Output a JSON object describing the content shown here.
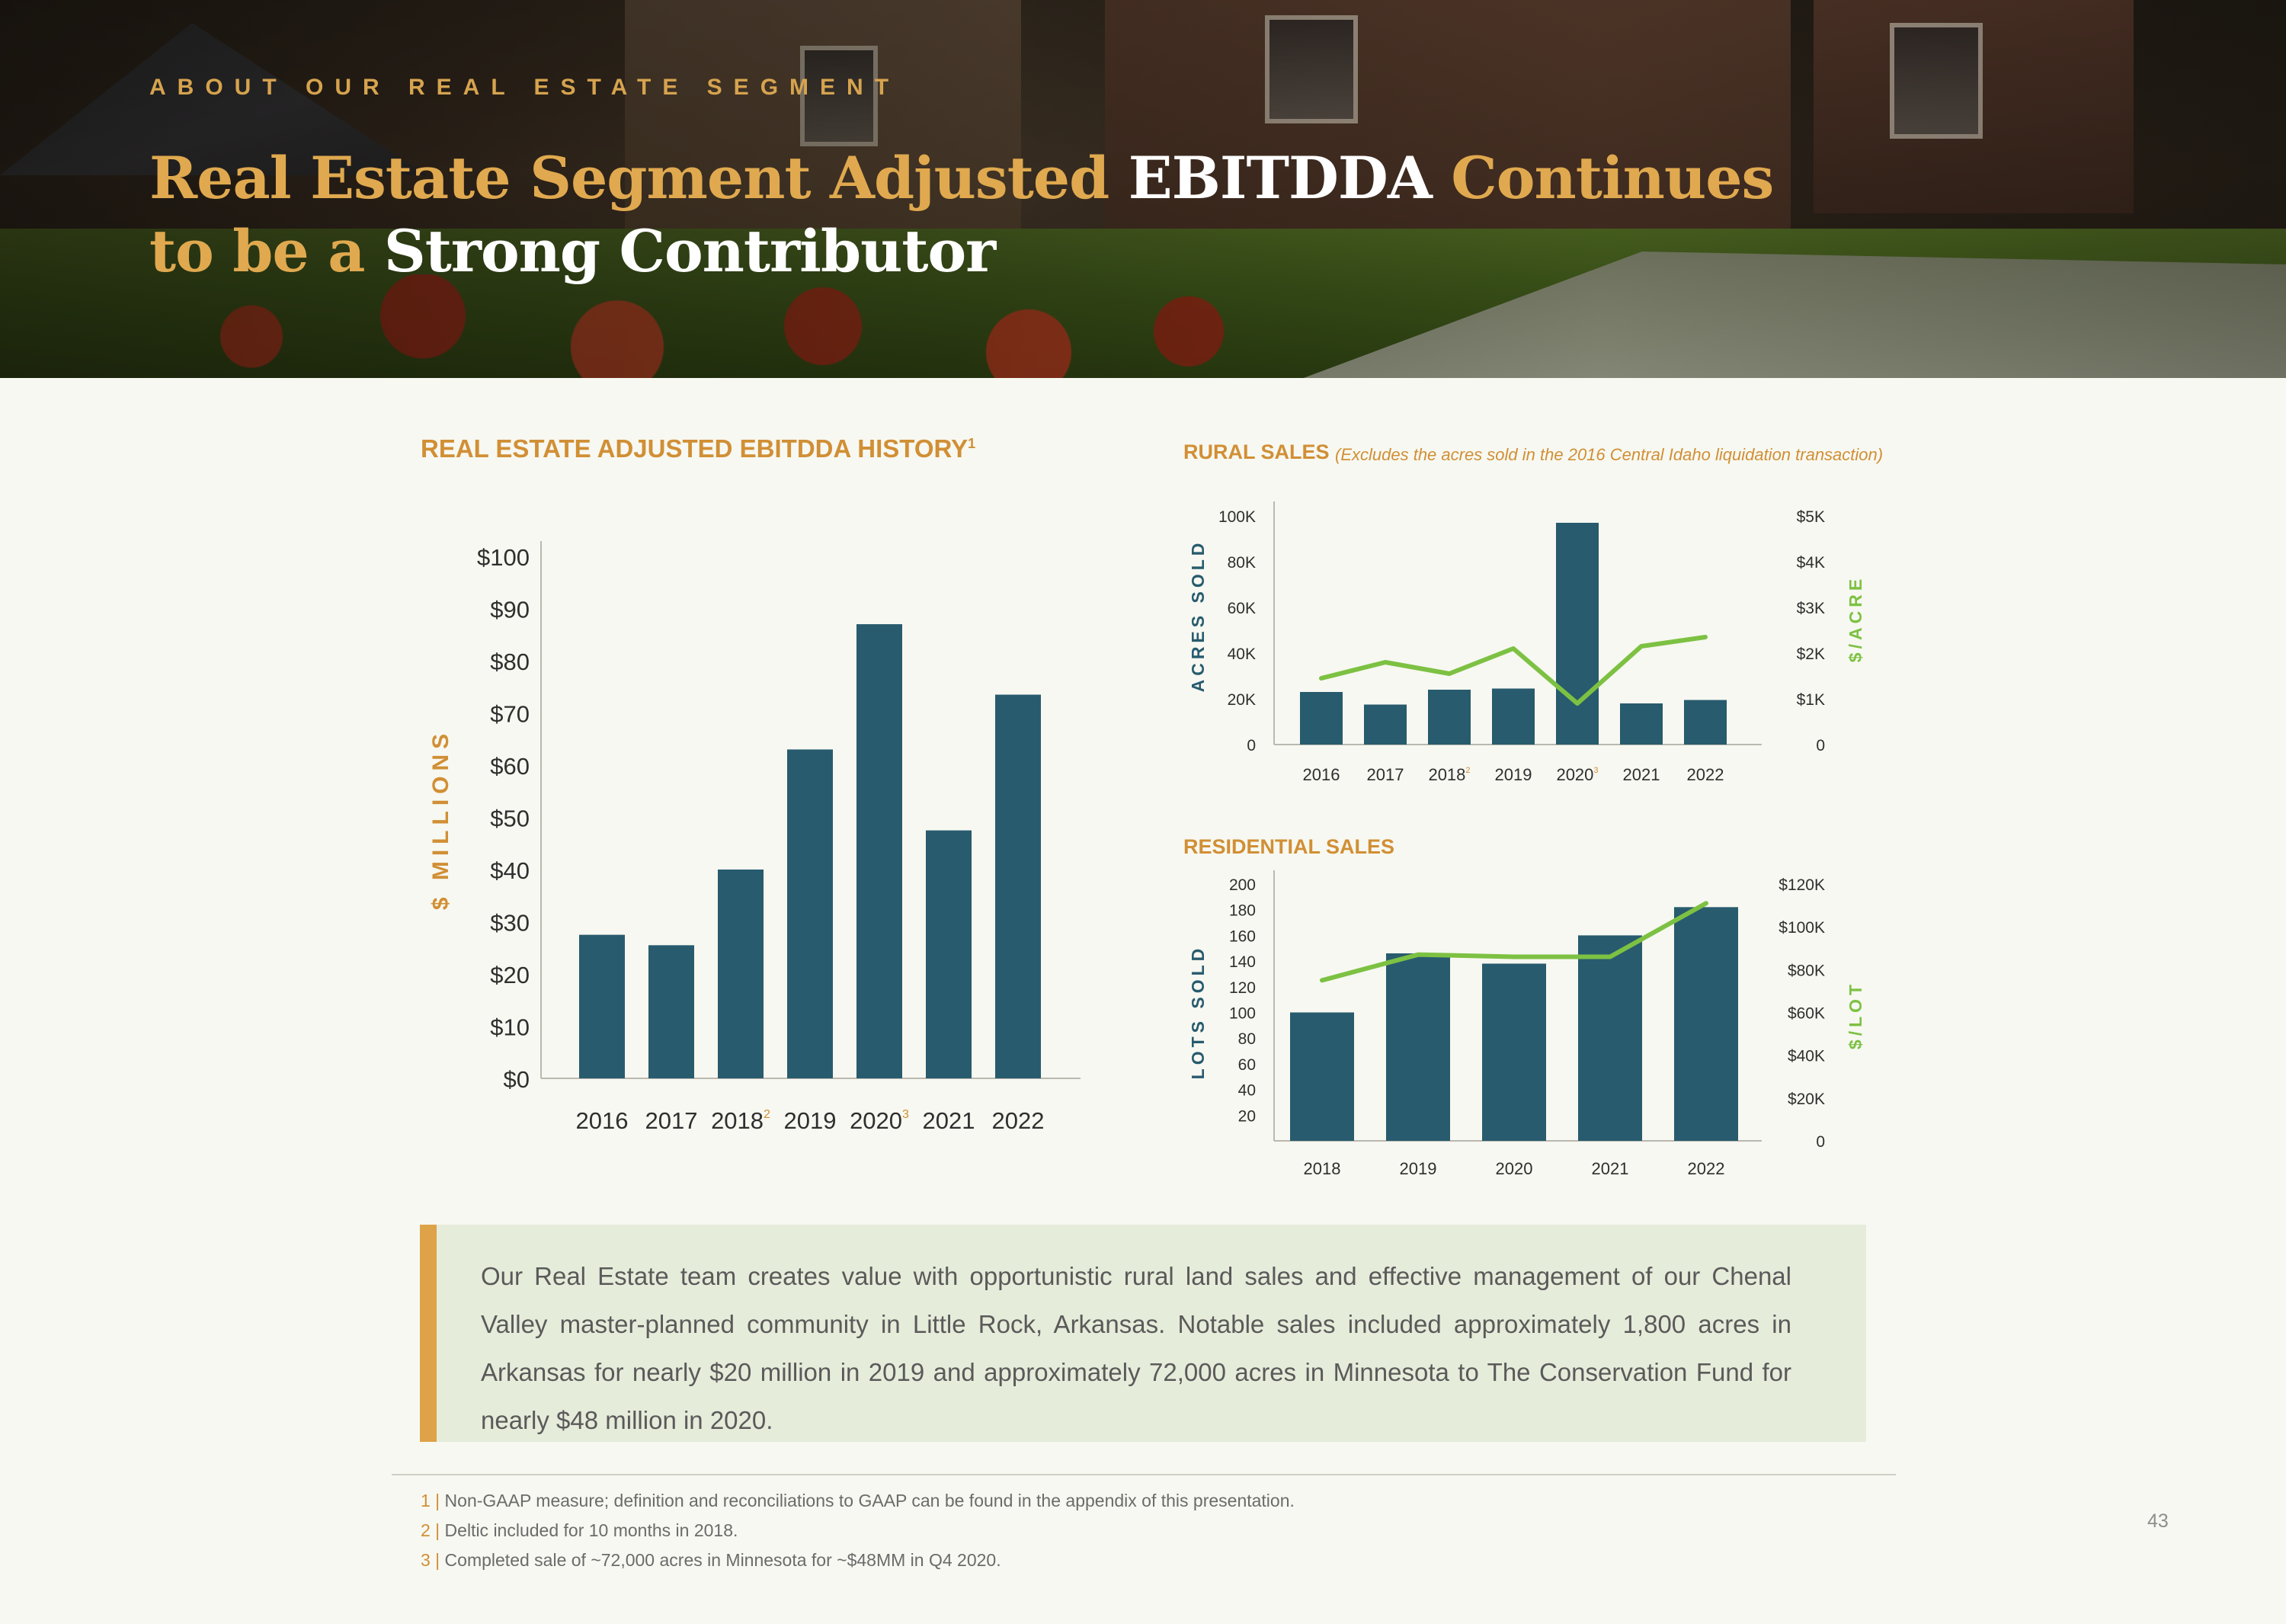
{
  "header": {
    "eyebrow": "ABOUT OUR REAL ESTATE SEGMENT",
    "title_part1": "Real Estate Segment Adjusted ",
    "title_part2": "EBITDDA",
    "title_part3": " Continues",
    "title_part4": "to be a ",
    "title_part5": "Strong Contributor"
  },
  "chart_data": [
    {
      "type": "bar",
      "title": "REAL ESTATE ADJUSTED EBITDDA HISTORY",
      "title_footnote": "1",
      "ylabel": "$ MILLIONS",
      "xlabel": "",
      "categories": [
        "2016",
        "2017",
        "2018",
        "2019",
        "2020",
        "2021",
        "2022"
      ],
      "category_footnotes": [
        "",
        "",
        "2",
        "",
        "3",
        "",
        ""
      ],
      "values": [
        27.5,
        25.5,
        40,
        63,
        87,
        47.5,
        73.5
      ],
      "ylim": [
        0,
        100
      ],
      "yticks": [
        0,
        10,
        20,
        30,
        40,
        50,
        60,
        70,
        80,
        90,
        100
      ],
      "ytick_labels": [
        "$0",
        "$10",
        "$20",
        "$30",
        "$40",
        "$50",
        "$60",
        "$70",
        "$80",
        "$90",
        "$100"
      ],
      "bar_color": "#285b6e",
      "grid": false
    },
    {
      "type": "bar",
      "title": "RURAL SALES",
      "subtitle": "(Excludes the acres sold in the 2016 Central Idaho liquidation transaction)",
      "ylabel": "ACRES SOLD",
      "y2label": "$/ACRE",
      "categories": [
        "2016",
        "2017",
        "2018",
        "2019",
        "2020",
        "2021",
        "2022"
      ],
      "category_footnotes": [
        "",
        "",
        "2",
        "",
        "3",
        "",
        ""
      ],
      "series": [
        {
          "name": "Acres Sold",
          "type": "bar",
          "axis": "left",
          "values": [
            23000,
            17500,
            24000,
            24500,
            97000,
            18000,
            19500
          ],
          "color": "#285b6e"
        },
        {
          "name": "$/Acre",
          "type": "line",
          "axis": "right",
          "values": [
            1450,
            1800,
            1550,
            2100,
            900,
            2150,
            2350
          ],
          "color": "#7dc143"
        }
      ],
      "ylim": [
        0,
        100000
      ],
      "yticks": [
        0,
        20000,
        40000,
        60000,
        80000,
        100000
      ],
      "ytick_labels": [
        "0",
        "20K",
        "40K",
        "60K",
        "80K",
        "100K"
      ],
      "y2lim": [
        0,
        5000
      ],
      "y2ticks": [
        0,
        1000,
        2000,
        3000,
        4000,
        5000
      ],
      "y2tick_labels": [
        "0",
        "$1K",
        "$2K",
        "$3K",
        "$4K",
        "$5K"
      ],
      "grid": false
    },
    {
      "type": "bar",
      "title": "RESIDENTIAL SALES",
      "ylabel": "LOTS SOLD",
      "y2label": "$/LOT",
      "categories": [
        "2018",
        "2019",
        "2020",
        "2021",
        "2022"
      ],
      "series": [
        {
          "name": "Lots Sold",
          "type": "bar",
          "axis": "left",
          "values": [
            100,
            146,
            138,
            160,
            182
          ],
          "color": "#285b6e"
        },
        {
          "name": "$/Lot",
          "type": "line",
          "axis": "right",
          "values": [
            75000,
            87000,
            86000,
            86000,
            111000
          ],
          "color": "#7dc143"
        }
      ],
      "ylim": [
        0,
        200
      ],
      "yticks": [
        20,
        40,
        60,
        80,
        100,
        120,
        140,
        160,
        180,
        200
      ],
      "ytick_labels": [
        "20",
        "40",
        "60",
        "80",
        "100",
        "120",
        "140",
        "160",
        "180",
        "200"
      ],
      "y2lim": [
        0,
        120000
      ],
      "y2ticks": [
        0,
        20000,
        40000,
        60000,
        80000,
        100000,
        120000
      ],
      "y2tick_labels": [
        "0",
        "$20K",
        "$40K",
        "$60K",
        "$80K",
        "$100K",
        "$120K"
      ],
      "grid": false
    }
  ],
  "callout": {
    "text": "Our Real Estate team creates value with opportunistic rural land sales and effective management of our Chenal Valley master-planned community in Little Rock, Arkansas. Notable sales included approximately 1,800 acres in Arkansas for nearly $20 million in 2019 and approximately 72,000 acres in Minnesota to The Conservation Fund for nearly $48 million in 2020.",
    "accent_color": "#dea248"
  },
  "footnotes": [
    {
      "num": "1 |",
      "text": " Non-GAAP measure; definition and reconciliations to GAAP can be found in the appendix of this presentation."
    },
    {
      "num": "2 |",
      "text": " Deltic included for 10 months in 2018."
    },
    {
      "num": "3 |",
      "text": " Completed sale of ~72,000 acres in Minnesota for ~$48MM in Q4 2020."
    }
  ],
  "page_number": "43"
}
